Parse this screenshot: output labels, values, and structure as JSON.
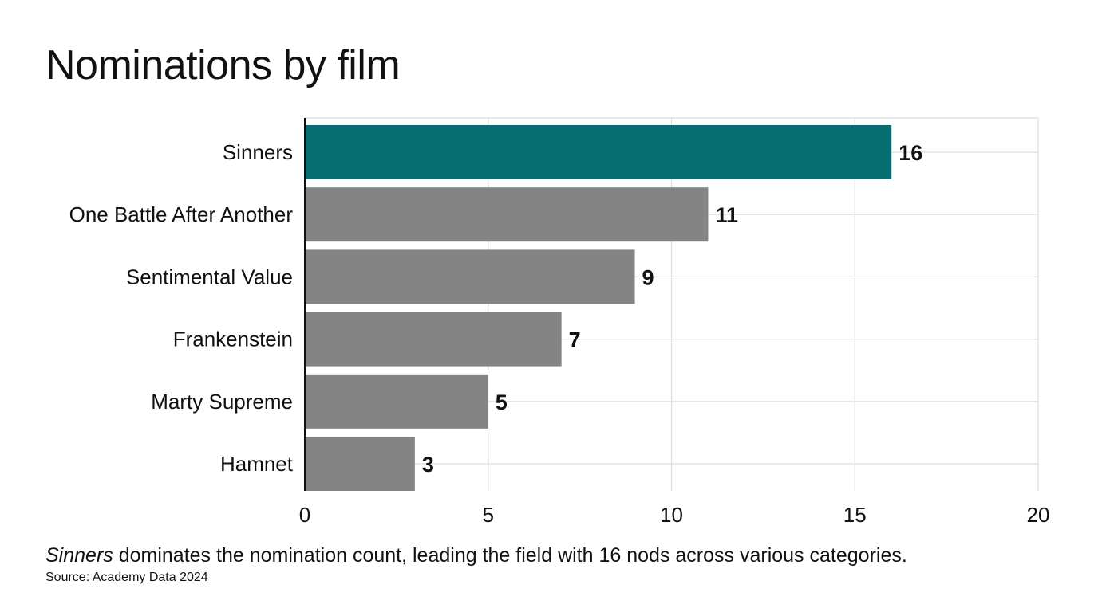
{
  "chart_data": {
    "type": "bar",
    "orientation": "horizontal",
    "title": "Nominations by film",
    "categories": [
      "Sinners",
      "One Battle After Another",
      "Sentimental Value",
      "Frankenstein",
      "Marty Supreme",
      "Hamnet"
    ],
    "values": [
      16,
      11,
      9,
      7,
      5,
      3
    ],
    "data_labels": [
      "16",
      "11",
      "9",
      "7",
      "5",
      "3"
    ],
    "highlight_category": "Sinners",
    "xlim": [
      0,
      20
    ],
    "x_ticks": [
      0,
      5,
      10,
      15,
      20
    ],
    "x_tick_labels": [
      "0",
      "5",
      "10",
      "15",
      "20"
    ],
    "xlabel": "",
    "ylabel": "",
    "grid": true,
    "colors": {
      "highlight": "#066e72",
      "default": "#848484",
      "grid": "#dddddd",
      "axis": "#111111"
    }
  },
  "caption": {
    "emphasis": "Sinners",
    "rest": " dominates the nomination count, leading the field with 16 nods across various categories."
  },
  "source": "Source: Academy Data 2024"
}
